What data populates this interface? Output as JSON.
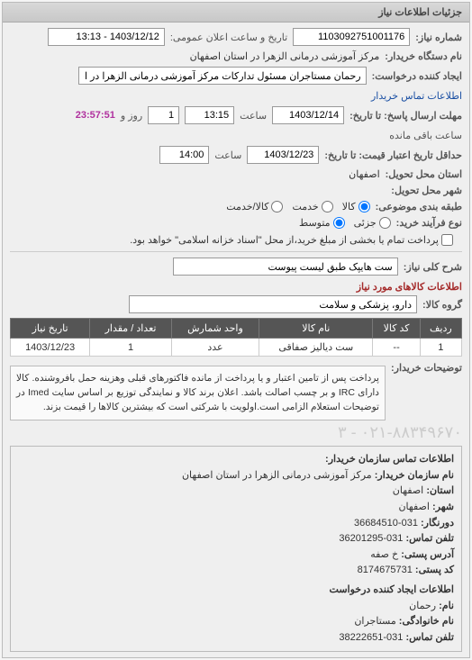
{
  "header": {
    "title": "جزئیات اطلاعات نیاز"
  },
  "fields": {
    "need_no_label": "شماره نیاز:",
    "need_no": "1103092751001176",
    "announce_label": "تاریخ و ساعت اعلان عمومی:",
    "announce_value": "1403/12/12 - 13:13",
    "org_label": "نام دستگاه خریدار:",
    "org_value": "مرکز آموزشی درمانی الزهرا در استان اصفهان",
    "creator_label": "ایجاد کننده درخواست:",
    "creator_value": "رحمان مستاجران مسئول تدارکات مرکز آموزشی درمانی الزهرا در استان اصفهان",
    "creator_link": "اطلاعات تماس خریدار",
    "deadline_reply_label": "مهلت ارسال پاسخ: تا تاریخ:",
    "deadline_reply_date": "1403/12/14",
    "time_label": "ساعت",
    "deadline_reply_time": "13:15",
    "days_label": "روز و",
    "days_value": "1",
    "timer_value": "23:57:51",
    "remain_label": "ساعت باقی مانده",
    "price_deadline_label": "حداقل تاریخ اعتبار قیمت: تا تاریخ:",
    "price_deadline_date": "1403/12/23",
    "price_deadline_time": "14:00",
    "province_label": "استان محل تحویل:",
    "province_value": "اصفهان",
    "city_label": "شهر محل تحویل:",
    "city_value": "",
    "category_label": "طبقه بندی موضوعی:",
    "cat_goods": "کالا",
    "cat_service": "خدمت",
    "cat_both": "کالا/خدمت",
    "process_label": "نوع فرآیند خرید:",
    "proc_low": "جزئی",
    "proc_mid": "متوسط",
    "pay_label": "پرداخت تمام یا بخشی از مبلغ خرید،از محل \"اسناد خزانه اسلامی\" خواهد بود.",
    "need_title_label": "شرح کلی نیاز:",
    "need_title": "ست هایپک طبق لیست پیوست",
    "goods_section": "اطلاعات کالاهای مورد نیاز",
    "goods_group_label": "گروه کالا:",
    "goods_group": "دارو، پزشکی و سلامت"
  },
  "table": {
    "headers": [
      "ردیف",
      "کد کالا",
      "نام کالا",
      "واحد شمارش",
      "تعداد / مقدار",
      "تاریخ نیاز"
    ],
    "rows": [
      [
        "1",
        "--",
        "ست دیالیز صفاقی",
        "عدد",
        "1",
        "1403/12/23"
      ]
    ]
  },
  "buyer_desc": {
    "label": "توضیحات خریدار:",
    "text": "پرداخت پس از تامین اعتبار و یا پرداخت از مانده فاکتورهای قبلی وهزینه حمل بافروشنده. کالا دارای IRC و بر چسب اصالت باشد. اعلان برند کالا و نمایندگی توزیع بر اساس سایت Imed در توضیحات استعلام الزامی است.اولویت با شرکتی است که بیشترین کالاها را قیمت بزند."
  },
  "contact": {
    "title": "اطلاعات تماس سازمان خریدار:",
    "org_name_label": "نام سازمان خریدار:",
    "org_name": "مرکز آموزشی درمانی الزهرا در استان اصفهان",
    "province_label": "استان:",
    "province": "اصفهان",
    "city_label": "شهر:",
    "city": "اصفهان",
    "fax_label": "دورنگار:",
    "fax": "031-36684510",
    "phone_label": "تلفن تماس:",
    "phone": "031-36201295",
    "address_label": "آدرس پستی:",
    "address": "خ صفه",
    "postal_label": "کد پستی:",
    "postal": "8174675731",
    "creator_section": "اطلاعات ایجاد کننده درخواست",
    "name_label": "نام:",
    "name": "رحمان",
    "family_label": "نام خانوادگی:",
    "family": "مستاجران",
    "creator_phone_label": "تلفن تماس:",
    "creator_phone": "031-38222651",
    "faded": "۰۲۱-۸۸۳۴۹۶۷۰ - ۳"
  }
}
